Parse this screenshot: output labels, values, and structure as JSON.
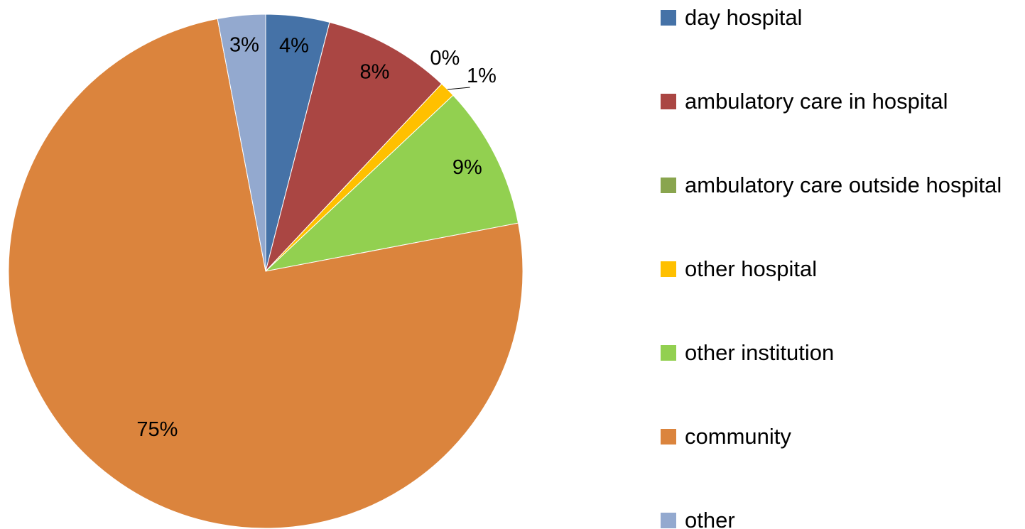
{
  "chart_data": {
    "type": "pie",
    "categories": [
      "day hospital",
      "ambulatory care in hospital",
      "ambulatory care outside hospital",
      "other hospital",
      "other institution",
      "community",
      "other"
    ],
    "values": [
      4,
      8,
      0,
      1,
      9,
      75,
      3
    ],
    "value_labels": [
      "4%",
      "8%",
      "0%",
      "1%",
      "9%",
      "75%",
      "3%"
    ],
    "colors": [
      "#4572a7",
      "#aa4643",
      "#89a54e",
      "#ffc000",
      "#92d050",
      "#db843d",
      "#93a9cf"
    ],
    "legend": "right"
  }
}
